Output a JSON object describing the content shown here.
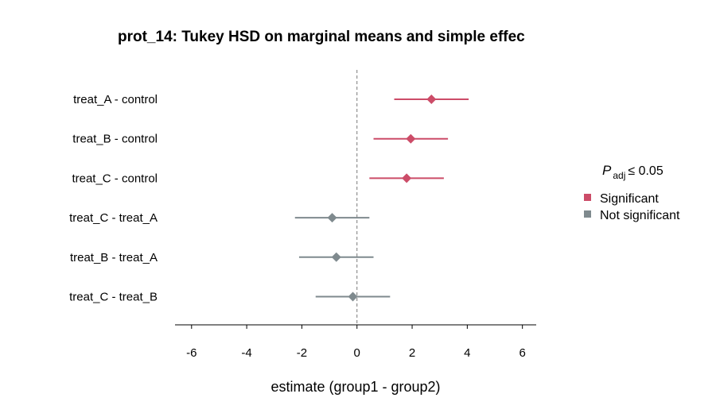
{
  "chart_data": {
    "type": "forest",
    "title": "prot_14: Tukey HSD on marginal means and simple effec",
    "xlabel": "estimate (group1 - group2)",
    "ylabel": "",
    "xlim": [
      -6.6,
      6.5
    ],
    "x_ticks": [
      -6,
      -4,
      -2,
      0,
      2,
      4,
      6
    ],
    "x_tick_labels": [
      "-6",
      "-4",
      "-2",
      "0",
      "2",
      "4",
      "6"
    ],
    "reference_line": 0,
    "grid": false,
    "legend": {
      "title_symbol": "P",
      "title_subscript": "adj",
      "title_rest": "≤ 0.05",
      "position": "right",
      "items": [
        {
          "label": "Significant",
          "color": "#cc4c68"
        },
        {
          "label": "Not significant",
          "color": "#7f8a8e"
        }
      ]
    },
    "comparisons": [
      {
        "label": "treat_A - control",
        "estimate": 2.7,
        "low": 1.35,
        "high": 4.05,
        "significant": true
      },
      {
        "label": "treat_B - control",
        "estimate": 1.95,
        "low": 0.6,
        "high": 3.3,
        "significant": true
      },
      {
        "label": "treat_C - control",
        "estimate": 1.8,
        "low": 0.45,
        "high": 3.15,
        "significant": true
      },
      {
        "label": "treat_C - treat_A",
        "estimate": -0.9,
        "low": -2.25,
        "high": 0.45,
        "significant": false
      },
      {
        "label": "treat_B - treat_A",
        "estimate": -0.75,
        "low": -2.1,
        "high": 0.6,
        "significant": false
      },
      {
        "label": "treat_C - treat_B",
        "estimate": -0.15,
        "low": -1.5,
        "high": 1.2,
        "significant": false
      }
    ]
  }
}
